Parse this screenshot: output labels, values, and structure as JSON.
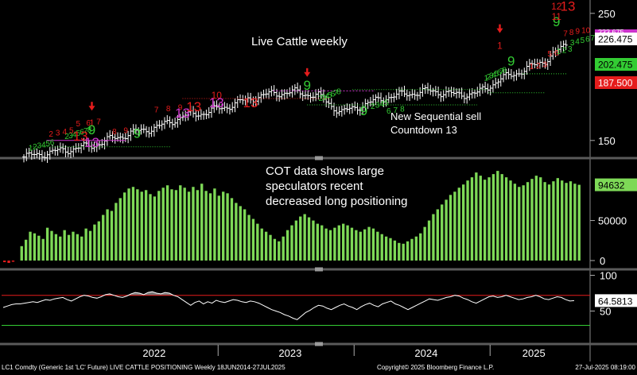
{
  "annotations": {
    "title": "Live Cattle weekly",
    "sequential_note_1": "New Sequential sell",
    "sequential_note_2": "Countdown 13",
    "cot_note_1": "COT data shows large",
    "cot_note_2": "speculators recent",
    "cot_note_3": "decreased long positioning"
  },
  "footer": {
    "left": "LC1 Comdty (Generic 1st 'LC' Future) LIVE CATTLE POSITIONING  Weekly 18JUN2014-27JUL2025",
    "center": "Copyright© 2025 Bloomberg Finance L.P.",
    "right": "27-Jul-2025 08:19:00"
  },
  "colors": {
    "background": "#000000",
    "price_bars": "#ffffff",
    "cot_bars": "#7ed957",
    "green_count": "#33cc33",
    "red_count": "#e51c1c",
    "magenta_count": "#cc33cc",
    "rsi_line": "#ffffff",
    "rsi_upper": "#e51c1c",
    "rsi_lower": "#33cc33",
    "panel_divider": "#666666"
  },
  "chart_data": [
    {
      "type": "ohlc",
      "title": "Live Cattle weekly",
      "ylim": [
        138,
        258
      ],
      "y_ticks": [
        150,
        250
      ],
      "close_path": [
        {
          "x": "2021-07",
          "y": 137
        },
        {
          "x": "2021-09",
          "y": 140
        },
        {
          "x": "2021-11",
          "y": 143
        },
        {
          "x": "2022-01",
          "y": 146
        },
        {
          "x": "2022-03",
          "y": 152
        },
        {
          "x": "2022-05",
          "y": 157
        },
        {
          "x": "2022-07",
          "y": 161
        },
        {
          "x": "2022-09",
          "y": 169
        },
        {
          "x": "2022-11",
          "y": 172
        },
        {
          "x": "2023-01",
          "y": 177
        },
        {
          "x": "2023-03",
          "y": 183
        },
        {
          "x": "2023-05",
          "y": 187
        },
        {
          "x": "2023-07",
          "y": 188
        },
        {
          "x": "2023-09",
          "y": 185
        },
        {
          "x": "2023-11",
          "y": 172
        },
        {
          "x": "2024-01",
          "y": 178
        },
        {
          "x": "2024-03",
          "y": 184
        },
        {
          "x": "2024-05",
          "y": 187
        },
        {
          "x": "2024-07",
          "y": 189
        },
        {
          "x": "2024-09",
          "y": 186
        },
        {
          "x": "2024-11",
          "y": 187
        },
        {
          "x": "2025-01",
          "y": 198
        },
        {
          "x": "2025-03",
          "y": 205
        },
        {
          "x": "2025-05",
          "y": 213
        },
        {
          "x": "2025-07",
          "y": 226.475
        }
      ],
      "last_price": "226.475",
      "labels": [
        {
          "value": "233.675",
          "color": "#cc33cc"
        },
        {
          "value": "226.475",
          "color": "#000000"
        },
        {
          "value": "202.475",
          "color": "#33cc33"
        },
        {
          "value": "187.500",
          "color": "#e51c1c"
        }
      ],
      "levels": [
        {
          "y": 202.475,
          "color": "#33cc33",
          "style": "dotted"
        },
        {
          "y": 187.5,
          "color": "#33cc33",
          "style": "dotted"
        }
      ],
      "sequential_counts": [
        {
          "t": "2022-01",
          "y": 161,
          "text": "1",
          "color": "#e51c1c",
          "arrow": true
        },
        {
          "t": "2022-01",
          "y": 155,
          "text": "9",
          "color": "#33cc33"
        },
        {
          "t": "2021-12",
          "y": 150,
          "text": "13",
          "color": "#e51c1c"
        },
        {
          "t": "2022-01",
          "y": 145,
          "text": "13",
          "color": "#cc33cc"
        },
        {
          "t": "2022-05",
          "y": 152,
          "text": "9",
          "color": "#33cc33"
        },
        {
          "t": "2022-09",
          "y": 168,
          "text": "13",
          "color": "#cc33cc"
        },
        {
          "t": "2022-10",
          "y": 173,
          "text": "13",
          "color": "#e51c1c"
        },
        {
          "t": "2022-12",
          "y": 183,
          "text": "10",
          "color": "#e51c1c"
        },
        {
          "t": "2022-12",
          "y": 176,
          "text": "13",
          "color": "#cc33cc"
        },
        {
          "t": "2023-03",
          "y": 176,
          "text": "13",
          "color": "#e51c1c"
        },
        {
          "t": "2023-08",
          "y": 190,
          "text": "9",
          "color": "#33cc33"
        },
        {
          "t": "2023-08",
          "y": 200,
          "text": "",
          "color": "#e51c1c",
          "arrow": true
        },
        {
          "t": "2024-01",
          "y": 170,
          "text": "9",
          "color": "#33cc33"
        },
        {
          "t": "2025-02",
          "y": 209,
          "text": "9",
          "color": "#33cc33"
        },
        {
          "t": "2025-01",
          "y": 222,
          "text": "1",
          "color": "#e51c1c",
          "arrow": true
        },
        {
          "t": "2025-06",
          "y": 240,
          "text": "9",
          "color": "#33cc33"
        },
        {
          "t": "2025-06",
          "y": 253,
          "text": "12",
          "color": "#e51c1c"
        },
        {
          "t": "2025-06",
          "y": 245,
          "text": "11",
          "color": "#e51c1c"
        },
        {
          "t": "2025-07",
          "y": 252,
          "text": "13",
          "color": "#e51c1c"
        }
      ]
    },
    {
      "type": "bar",
      "title": "LIVE CATTLE POSITIONING",
      "ylim": [
        -8000,
        125000
      ],
      "y_ticks": [
        0,
        50000
      ],
      "last_value": "94632",
      "values": [
        -2000,
        -3000,
        -1500,
        0,
        18000,
        26000,
        36000,
        34000,
        31000,
        27000,
        41000,
        37000,
        33000,
        30000,
        38000,
        32000,
        36000,
        33000,
        30000,
        40000,
        37000,
        45000,
        49000,
        57000,
        64000,
        62000,
        72000,
        78000,
        85000,
        90000,
        92000,
        89000,
        86000,
        88000,
        83000,
        80000,
        87000,
        91000,
        94000,
        89000,
        88000,
        94000,
        91000,
        86000,
        92000,
        88000,
        96000,
        87000,
        84000,
        90000,
        81000,
        86000,
        84000,
        78000,
        72000,
        68000,
        64000,
        57000,
        52000,
        46000,
        40000,
        36000,
        32000,
        27000,
        24000,
        30000,
        38000,
        44000,
        50000,
        55000,
        58000,
        54000,
        50000,
        46000,
        44000,
        40000,
        38000,
        41000,
        44000,
        46000,
        44000,
        41000,
        38000,
        36000,
        39000,
        42000,
        40000,
        36000,
        33000,
        30000,
        28000,
        25000,
        22000,
        21000,
        24000,
        27000,
        30000,
        34000,
        42000,
        50000,
        58000,
        64000,
        70000,
        76000,
        82000,
        86000,
        91000,
        95000,
        100000,
        104000,
        110000,
        106000,
        101000,
        104000,
        108000,
        112000,
        108000,
        104000,
        100000,
        96000,
        92000,
        94000,
        98000,
        102000,
        106000,
        104000,
        98000,
        95000,
        99000,
        103000,
        100000,
        97000,
        99000,
        96000,
        94632
      ]
    },
    {
      "type": "line",
      "title": "RSI",
      "ylim": [
        5,
        105
      ],
      "y_ticks": [
        50,
        100
      ],
      "last_value": "64.5813",
      "upper_level": 72,
      "lower_level": 30,
      "values": [
        55,
        57,
        59,
        60,
        60,
        61,
        62,
        63,
        62,
        64,
        66,
        65,
        67,
        68,
        69,
        66,
        64,
        67,
        70,
        72,
        71,
        69,
        68,
        70,
        73,
        74,
        72,
        70,
        69,
        71,
        74,
        76,
        75,
        73,
        76,
        77,
        75,
        74,
        76,
        75,
        72,
        70,
        66,
        62,
        58,
        62,
        64,
        60,
        63,
        61,
        65,
        63,
        62,
        64,
        66,
        65,
        63,
        62,
        64,
        63,
        61,
        58,
        55,
        52,
        50,
        48,
        45,
        43,
        40,
        38,
        43,
        48,
        51,
        55,
        58,
        57,
        54,
        52,
        55,
        58,
        60,
        57,
        55,
        52,
        56,
        59,
        61,
        58,
        56,
        60,
        62,
        64,
        60,
        58,
        55,
        52,
        55,
        58,
        61,
        64,
        67,
        66,
        65,
        67,
        69,
        70,
        72,
        71,
        68,
        66,
        63,
        61,
        64,
        67,
        70,
        71,
        69,
        70,
        72,
        70,
        68,
        66,
        67,
        69,
        70,
        72,
        70,
        67,
        66,
        68,
        70,
        69,
        66,
        64,
        64.5813
      ]
    }
  ],
  "x_axis": {
    "years": [
      "2022",
      "2023",
      "2024",
      "2025"
    ]
  }
}
